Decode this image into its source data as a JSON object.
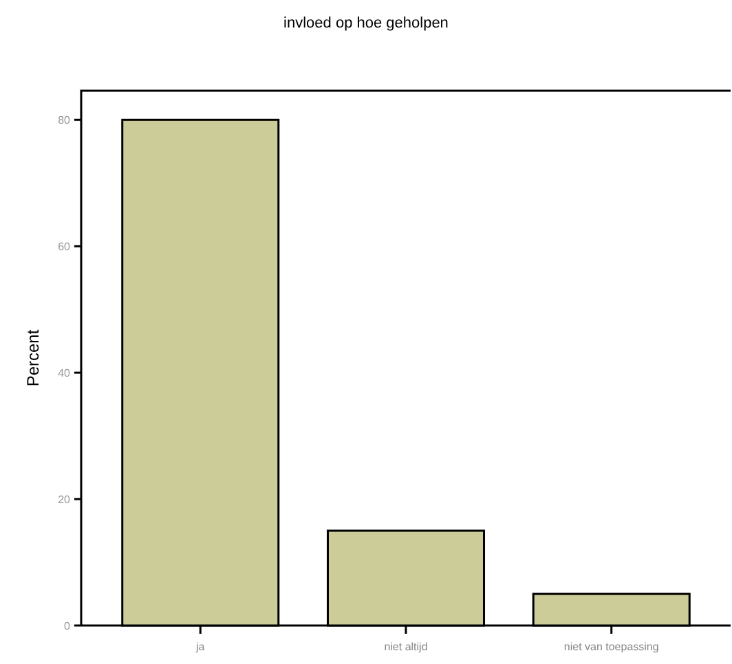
{
  "chart_data": {
    "type": "bar",
    "title": "invloed op hoe geholpen",
    "ylabel": "Percent",
    "categories": [
      "ja",
      "niet altijd",
      "niet van toepassing"
    ],
    "values": [
      80,
      15,
      5
    ],
    "color": "#cccc99",
    "ylim": [
      0,
      84.6
    ],
    "yticks": [
      0,
      20,
      40,
      60,
      80
    ],
    "grid": false
  }
}
